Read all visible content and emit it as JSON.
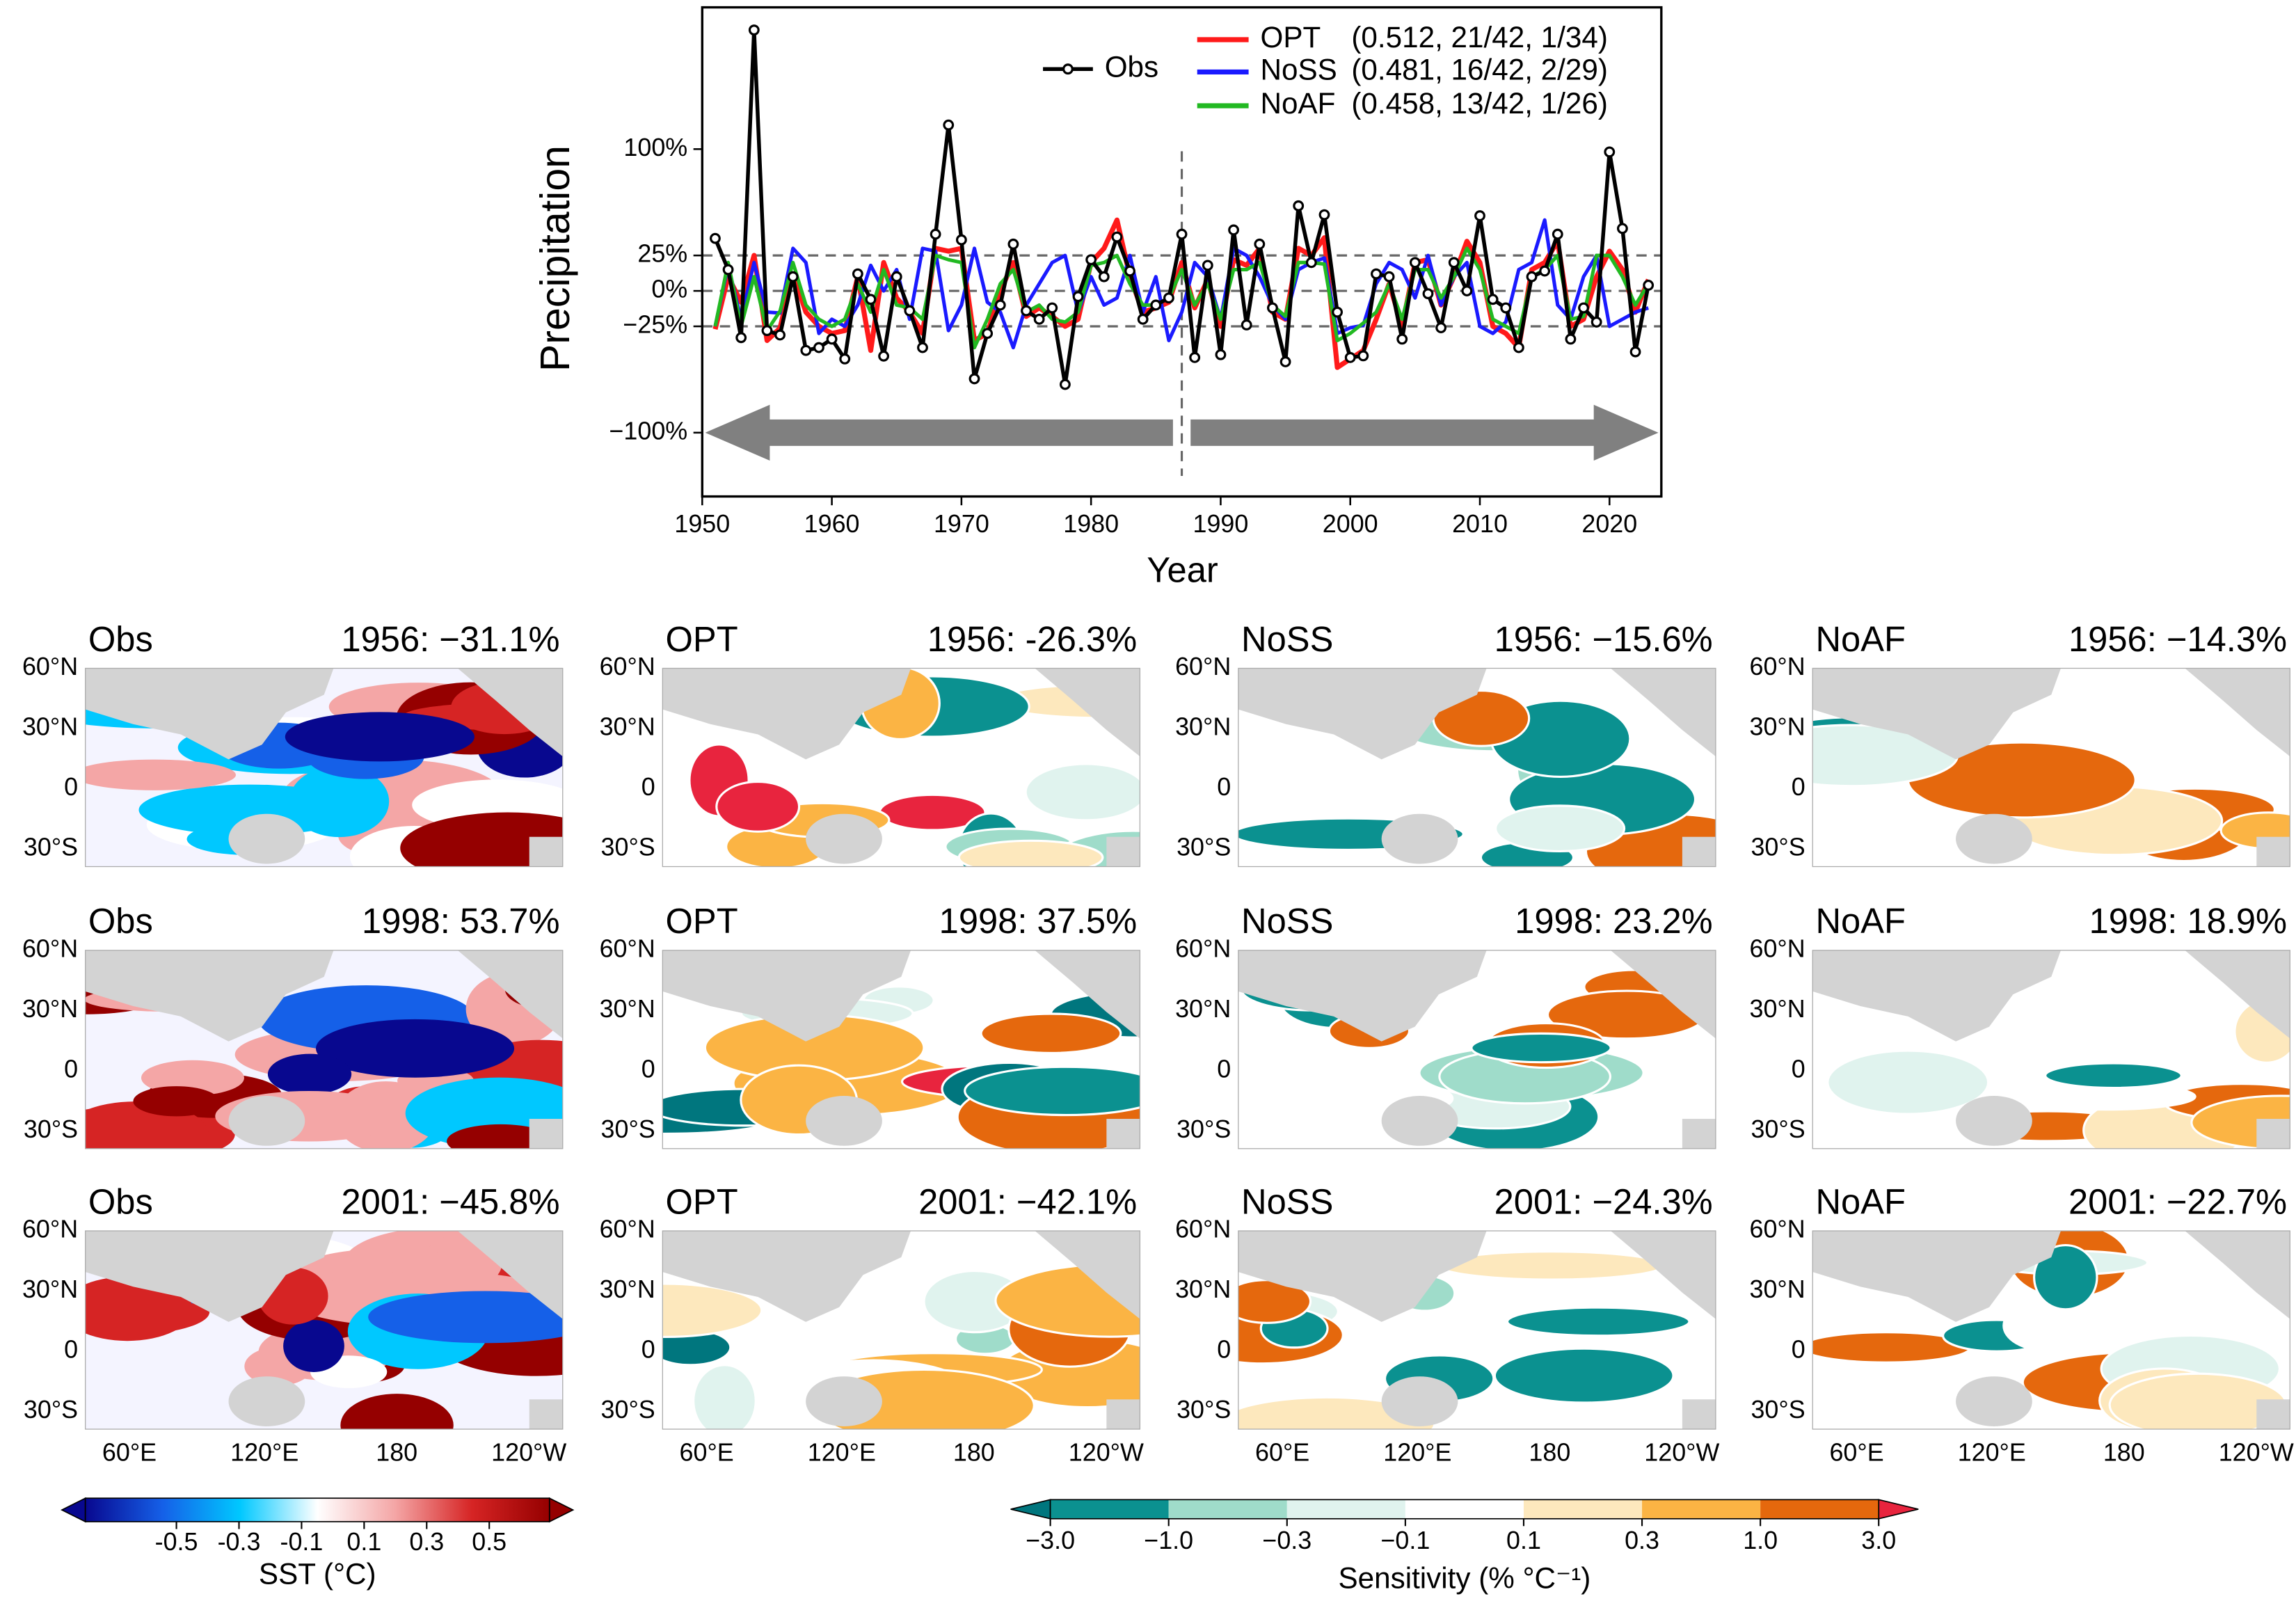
{
  "chart_data": {
    "type": "line",
    "xlabel": "Year",
    "ylabel": "Precipitation",
    "x": [
      1951,
      1952,
      1953,
      1954,
      1955,
      1956,
      1957,
      1958,
      1959,
      1960,
      1961,
      1962,
      1963,
      1964,
      1965,
      1966,
      1967,
      1968,
      1969,
      1970,
      1971,
      1972,
      1973,
      1974,
      1975,
      1976,
      1977,
      1978,
      1979,
      1980,
      1981,
      1982,
      1983,
      1984,
      1985,
      1986,
      1987,
      1988,
      1989,
      1990,
      1991,
      1992,
      1993,
      1994,
      1995,
      1996,
      1997,
      1998,
      1999,
      2000,
      2001,
      2002,
      2003,
      2004,
      2005,
      2006,
      2007,
      2008,
      2009,
      2010,
      2011,
      2012,
      2013,
      2014,
      2015,
      2016,
      2017,
      2018,
      2019,
      2020,
      2021,
      2022,
      2023
    ],
    "xlim": [
      1950,
      2024
    ],
    "xticks": [
      1950,
      1960,
      1970,
      1980,
      1990,
      2000,
      2010,
      2020
    ],
    "ylim": [
      -145,
      200
    ],
    "yticks": [
      {
        "value": -100,
        "label": "−100%"
      },
      {
        "value": -25,
        "label": "−25%"
      },
      {
        "value": 0,
        "label": "0%"
      },
      {
        "value": 25,
        "label": "25%"
      },
      {
        "value": 100,
        "label": "100%"
      }
    ],
    "hlines": [
      25,
      0,
      -25
    ],
    "vline": 1987,
    "series": [
      {
        "name": "Obs",
        "color": "#000000",
        "marker": true,
        "values": [
          37,
          15,
          -33,
          184,
          -28,
          -31.1,
          10,
          -42,
          -40,
          -34,
          -48,
          12,
          -6,
          -46,
          10,
          -14,
          -40,
          40,
          117,
          36,
          -62,
          -30,
          -10,
          33,
          -14,
          -20,
          -12,
          -66,
          -4,
          22,
          10,
          38,
          14,
          -20,
          -10,
          -5,
          40,
          -47,
          18,
          -45,
          43,
          -24,
          33,
          -12,
          -50,
          60,
          20,
          53.7,
          -15,
          -47,
          -45.8,
          12,
          10,
          -34,
          20,
          -2,
          -26,
          20,
          0,
          53,
          -6,
          -12,
          -40,
          10,
          14,
          40,
          -34,
          -12,
          -22,
          98,
          44,
          -43,
          4
        ]
      },
      {
        "name": "OPT",
        "stats": "(0.512, 21/42, 1/34)",
        "color": "#ff1a1a",
        "values": [
          -27,
          10,
          -8,
          25,
          -35,
          -26.3,
          12,
          -15,
          -25,
          -30,
          -28,
          10,
          -42,
          20,
          -5,
          -15,
          -30,
          30,
          28,
          30,
          -35,
          -30,
          0,
          20,
          -18,
          -12,
          -18,
          -25,
          -20,
          20,
          30,
          50,
          10,
          -15,
          -12,
          -8,
          20,
          -12,
          8,
          -25,
          22,
          18,
          30,
          -15,
          -20,
          30,
          25,
          37.5,
          -54,
          -48,
          -42.1,
          -20,
          5,
          -25,
          20,
          22,
          -10,
          10,
          35,
          20,
          -25,
          -30,
          -40,
          15,
          20,
          35,
          -25,
          -20,
          10,
          28,
          15,
          -15,
          8
        ]
      },
      {
        "name": "NoSS",
        "stats": "(0.481, 16/42, 2/29)",
        "color": "#1a1aff",
        "values": [
          -25,
          18,
          -20,
          20,
          -15,
          -15.6,
          30,
          20,
          -30,
          -20,
          -25,
          -10,
          18,
          0,
          15,
          -20,
          30,
          28,
          -28,
          -10,
          30,
          -8,
          -15,
          -40,
          -10,
          5,
          20,
          25,
          -15,
          10,
          -10,
          -5,
          25,
          -15,
          10,
          -35,
          -15,
          20,
          10,
          -20,
          30,
          25,
          10,
          -10,
          -20,
          15,
          20,
          23.2,
          -30,
          -26,
          -24.3,
          5,
          20,
          15,
          -5,
          25,
          -10,
          10,
          20,
          -25,
          -30,
          -22,
          15,
          20,
          50,
          -10,
          -20,
          10,
          25,
          -25,
          -20,
          -15,
          -12
        ]
      },
      {
        "name": "NoAF",
        "stats": "(0.458, 13/42, 1/26)",
        "color": "#22b922",
        "values": [
          -25,
          20,
          -25,
          10,
          -28,
          -14.3,
          20,
          -10,
          -20,
          -25,
          -20,
          5,
          -15,
          15,
          -10,
          -12,
          -20,
          25,
          22,
          20,
          -40,
          -20,
          5,
          15,
          -15,
          -10,
          -20,
          -22,
          -15,
          18,
          20,
          25,
          5,
          -10,
          -10,
          -5,
          15,
          -10,
          5,
          -20,
          15,
          15,
          20,
          -10,
          -18,
          20,
          20,
          18.9,
          -35,
          -30,
          -22.7,
          -15,
          5,
          -20,
          15,
          15,
          -5,
          10,
          30,
          15,
          -20,
          -25,
          -30,
          10,
          15,
          25,
          -20,
          -18,
          25,
          25,
          10,
          -10,
          5
        ]
      }
    ]
  },
  "maps": {
    "rows": [
      [
        {
          "label": "Obs",
          "title": "1956: −31.1%"
        },
        {
          "label": "OPT",
          "title": "1956: -26.3%"
        },
        {
          "label": "NoSS",
          "title": "1956: −15.6%"
        },
        {
          "label": "NoAF",
          "title": "1956: −14.3%"
        }
      ],
      [
        {
          "label": "Obs",
          "title": "1998: 53.7%"
        },
        {
          "label": "OPT",
          "title": "1998: 37.5%"
        },
        {
          "label": "NoSS",
          "title": "1998: 23.2%"
        },
        {
          "label": "NoAF",
          "title": "1998: 18.9%"
        }
      ],
      [
        {
          "label": "Obs",
          "title": "2001: −45.8%"
        },
        {
          "label": "OPT",
          "title": "2001: −42.1%"
        },
        {
          "label": "NoSS",
          "title": "2001: −24.3%"
        },
        {
          "label": "NoAF",
          "title": "2001: −22.7%"
        }
      ]
    ],
    "lat_labels": [
      "60°N",
      "30°N",
      "0",
      "30°S"
    ],
    "lon_labels": [
      "60°E",
      "120°E",
      "180",
      "120°W"
    ]
  },
  "colorbars": [
    {
      "label": "SST (°C)",
      "ticks": [
        -0.5,
        -0.3,
        -0.1,
        0.1,
        0.3,
        0.5
      ],
      "colors": [
        "#08088f",
        "#1560e8",
        "#00c8ff",
        "#ffffff",
        "#f4a6a6",
        "#d62424",
        "#950000"
      ]
    },
    {
      "label": "Sensitivity (% °C⁻¹)",
      "ticks": [
        {
          "value": -3,
          "label": "−3.0"
        },
        {
          "value": -1,
          "label": "−1.0"
        },
        {
          "value": -0.3,
          "label": "−0.3"
        },
        {
          "value": -0.1,
          "label": "−0.1"
        },
        0.1,
        0.3,
        {
          "value": 1,
          "label": "1.0"
        },
        {
          "value": 3,
          "label": "3.0"
        }
      ],
      "colors": [
        "#00767e",
        "#0b9190",
        "#9fdcca",
        "#e0f3ee",
        "#ffffff",
        "#fde8bd",
        "#fbb444",
        "#e5680d",
        "#e8243e"
      ]
    }
  ]
}
